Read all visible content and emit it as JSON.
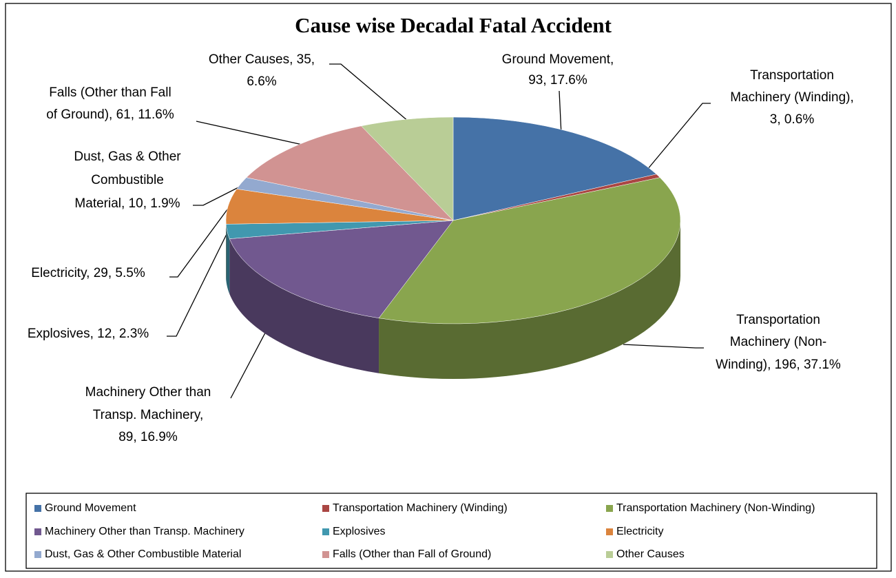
{
  "chart_data": {
    "type": "pie3d",
    "title": "Cause wise Decadal Fatal Accident",
    "categories": [
      "Ground Movement",
      "Transportation Machinery (Winding)",
      "Transportation Machinery (Non-Winding)",
      "Machinery Other than Transp. Machinery",
      "Explosives",
      "Electricity",
      "Dust, Gas & Other Combustible Material",
      "Falls (Other than Fall of Ground)",
      "Other Causes"
    ],
    "values": [
      93,
      3,
      196,
      89,
      12,
      29,
      10,
      61,
      35
    ],
    "colors": [
      "#4572a7",
      "#aa4643",
      "#89a54e",
      "#71588f",
      "#4198af",
      "#db843d",
      "#93a9cf",
      "#d19392",
      "#b9cd96"
    ],
    "data_labels": [
      [
        "Ground Movement,",
        "93, 17.6%"
      ],
      [
        "Transportation",
        "Machinery (Winding),",
        "3, 0.6%"
      ],
      [
        "Transportation",
        "Machinery (Non-",
        "Winding), 196, 37.1%"
      ],
      [
        "Machinery Other than",
        "Transp. Machinery,",
        "89, 16.9%"
      ],
      [
        "Explosives, 12, 2.3%"
      ],
      [
        "Electricity, 29, 5.5%"
      ],
      [
        "Dust, Gas & Other",
        "Combustible",
        "Material, 10, 1.9%"
      ],
      [
        "Falls (Other than Fall",
        "of Ground), 61, 11.6%"
      ],
      [
        "Other Causes, 35,",
        "6.6%"
      ]
    ],
    "legend": "bottom"
  }
}
